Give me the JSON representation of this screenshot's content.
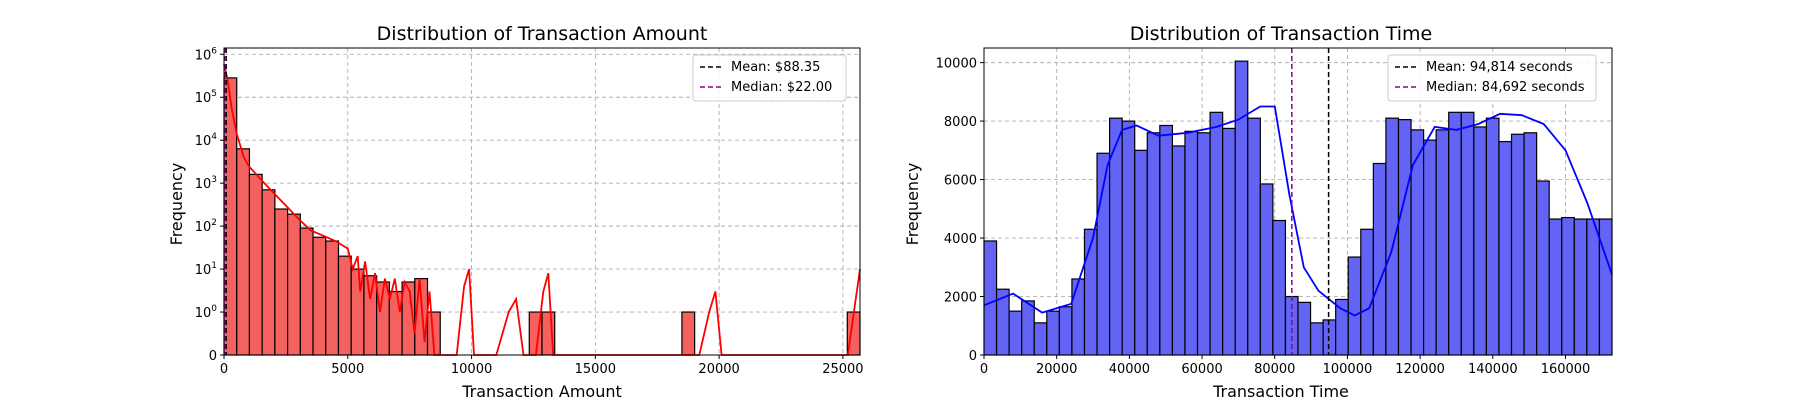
{
  "chart_data": [
    {
      "type": "bar",
      "title": "Distribution of Transaction Amount",
      "xlabel": "Transaction Amount",
      "ylabel": "Frequency",
      "xlim": [
        0,
        25691.16
      ],
      "xticks": [
        0,
        5000,
        10000,
        15000,
        20000,
        25000
      ],
      "xtick_labels": [
        "0",
        "5000",
        "10000",
        "15000",
        "20000",
        "25000"
      ],
      "yscale": "symlog",
      "yticks": [
        0,
        1,
        10,
        100,
        1000,
        10000,
        100000,
        1000000
      ],
      "ytick_labels": [
        "0",
        "10^0",
        "10^1",
        "10^2",
        "10^3",
        "10^4",
        "10^5",
        "10^6"
      ],
      "bin_width": 513.82,
      "series_color": "#ff0000",
      "bar_fill": "#f4615f",
      "grid": true,
      "legend_position": "top-right",
      "counts": [
        282000,
        6300,
        1600,
        700,
        250,
        190,
        90,
        55,
        45,
        20,
        10,
        7,
        5,
        3,
        5,
        6,
        1,
        0,
        0,
        0,
        0,
        0,
        0,
        0,
        1,
        1,
        0,
        0,
        0,
        0,
        0,
        0,
        0,
        0,
        0,
        0,
        1,
        0,
        0,
        0,
        0,
        0,
        0,
        0,
        0,
        0,
        0,
        0,
        0,
        1
      ],
      "kde_shape": [
        600000,
        25000,
        6000,
        3000,
        1200,
        800,
        500,
        350,
        250,
        200,
        160,
        120,
        90,
        70,
        60,
        40,
        35,
        25,
        30,
        20,
        15,
        15,
        10,
        8,
        6,
        5,
        5,
        6,
        4,
        3,
        2,
        3,
        1,
        0.5,
        0.3,
        0.2,
        0.1,
        0.05,
        0,
        0,
        0,
        0,
        0,
        0,
        0,
        0,
        0,
        0,
        0,
        0,
        0,
        0,
        0,
        0,
        0,
        0,
        0,
        0,
        0,
        0,
        0,
        0,
        0,
        0,
        0,
        0,
        0,
        0,
        0,
        0,
        0,
        0,
        0,
        0,
        0,
        0,
        0,
        0,
        0,
        0,
        0,
        0,
        0,
        0,
        0,
        0,
        0,
        0,
        0,
        0,
        0,
        0,
        0,
        0,
        0,
        0,
        0,
        0,
        0,
        0
      ],
      "kde_points": [
        [
          0,
          600000
        ],
        [
          150,
          250000
        ],
        [
          300,
          60000
        ],
        [
          500,
          15000
        ],
        [
          800,
          4000
        ],
        [
          1000,
          2500
        ],
        [
          1500,
          1200
        ],
        [
          2000,
          600
        ],
        [
          2500,
          300
        ],
        [
          3000,
          150
        ],
        [
          3500,
          80
        ],
        [
          4000,
          60
        ],
        [
          4500,
          45
        ],
        [
          5000,
          30
        ],
        [
          5200,
          10
        ],
        [
          5400,
          20
        ],
        [
          5500,
          3
        ],
        [
          5700,
          15
        ],
        [
          5900,
          2
        ],
        [
          6100,
          8
        ],
        [
          6300,
          1
        ],
        [
          6500,
          6
        ],
        [
          6700,
          2
        ],
        [
          6900,
          6
        ],
        [
          7100,
          1
        ],
        [
          7300,
          5
        ],
        [
          7500,
          3
        ],
        [
          7700,
          0.5
        ],
        [
          7900,
          6
        ],
        [
          8100,
          0.3
        ],
        [
          8300,
          3
        ],
        [
          8500,
          0
        ],
        [
          9000,
          0
        ],
        [
          9400,
          0
        ],
        [
          9700,
          4
        ],
        [
          9900,
          10
        ],
        [
          10100,
          0
        ],
        [
          11000,
          0
        ],
        [
          11500,
          1
        ],
        [
          11800,
          2
        ],
        [
          12100,
          0
        ],
        [
          12600,
          0
        ],
        [
          12900,
          3
        ],
        [
          13100,
          8
        ],
        [
          13300,
          0
        ],
        [
          18000,
          0
        ],
        [
          19200,
          0
        ],
        [
          19600,
          1
        ],
        [
          19850,
          3
        ],
        [
          20100,
          0
        ],
        [
          25200,
          0
        ],
        [
          25691,
          10
        ]
      ],
      "mean_line": {
        "x": 88.35,
        "color": "#000000"
      },
      "median_line": {
        "x": 22.0,
        "color": "#8b008b"
      },
      "legend": [
        {
          "label": "Mean: $88.35",
          "color": "#000000"
        },
        {
          "label": "Median: $22.00",
          "color": "#8b008b"
        }
      ]
    },
    {
      "type": "bar",
      "title": "Distribution of Transaction Time",
      "xlabel": "Transaction Time",
      "ylabel": "Frequency",
      "xlim": [
        0,
        172792
      ],
      "xticks": [
        0,
        20000,
        40000,
        60000,
        80000,
        100000,
        120000,
        140000,
        160000
      ],
      "xtick_labels": [
        "0",
        "20000",
        "40000",
        "60000",
        "80000",
        "100000",
        "120000",
        "140000",
        "160000"
      ],
      "ylim": [
        0,
        10500
      ],
      "yticks": [
        0,
        2000,
        4000,
        6000,
        8000,
        10000
      ],
      "ytick_labels": [
        "0",
        "2000",
        "4000",
        "6000",
        "8000",
        "10000"
      ],
      "bin_width": 3455.84,
      "series_color": "#0000ff",
      "bar_fill": "#6363f5",
      "grid": true,
      "legend_position": "top-right",
      "counts": [
        3900,
        2250,
        1500,
        1850,
        1100,
        1500,
        1650,
        2600,
        4300,
        6900,
        8100,
        8000,
        7000,
        7600,
        7850,
        7150,
        7650,
        7600,
        8300,
        7750,
        10050,
        8100,
        5850,
        4600,
        2000,
        1800,
        1100,
        1200,
        1900,
        3350,
        4300,
        6550,
        8100,
        8050,
        7700,
        7350,
        7700,
        8300,
        8300,
        7800,
        8100,
        7300,
        7550,
        7600,
        5950,
        4650,
        4700,
        4650,
        4650,
        4650
      ],
      "kde_points": [
        [
          0,
          1700
        ],
        [
          8000,
          2100
        ],
        [
          16000,
          1450
        ],
        [
          24000,
          1750
        ],
        [
          30000,
          4000
        ],
        [
          34000,
          6500
        ],
        [
          38000,
          7700
        ],
        [
          42000,
          7850
        ],
        [
          48000,
          7500
        ],
        [
          56000,
          7600
        ],
        [
          64000,
          7800
        ],
        [
          70000,
          8050
        ],
        [
          76000,
          8500
        ],
        [
          80000,
          8500
        ],
        [
          84000,
          5500
        ],
        [
          88000,
          3000
        ],
        [
          92000,
          2200
        ],
        [
          98000,
          1600
        ],
        [
          102000,
          1350
        ],
        [
          106000,
          1600
        ],
        [
          112000,
          3500
        ],
        [
          118000,
          6500
        ],
        [
          124000,
          7800
        ],
        [
          130000,
          7700
        ],
        [
          136000,
          7900
        ],
        [
          142000,
          8250
        ],
        [
          148000,
          8200
        ],
        [
          154000,
          7900
        ],
        [
          160000,
          7000
        ],
        [
          166000,
          5200
        ],
        [
          172792,
          2750
        ]
      ],
      "mean_line": {
        "x": 94814,
        "color": "#000000"
      },
      "median_line": {
        "x": 84692,
        "color": "#8b008b"
      },
      "legend": [
        {
          "label": "Mean: 94,814 seconds",
          "color": "#000000"
        },
        {
          "label": "Median: 84,692 seconds",
          "color": "#8b008b"
        }
      ]
    }
  ]
}
